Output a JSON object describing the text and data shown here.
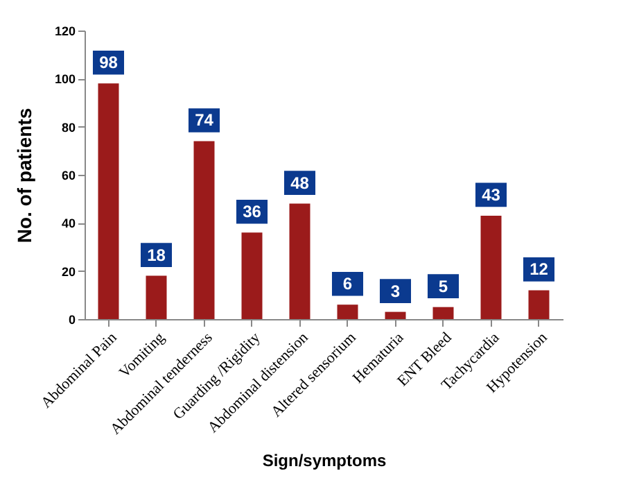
{
  "chart_data": {
    "type": "bar",
    "xlabel": "Sign/symptoms",
    "ylabel": "No. of patients",
    "categories": [
      "Abdominal Pain",
      "Vomiting",
      "Abdominal tenderness",
      "Guarding /Rigidity",
      "Abdominal distension",
      "Altered sensorium",
      "Hematuria",
      "ENT Bleed",
      "Tachycardia",
      "Hypotension"
    ],
    "values": [
      98,
      18,
      74,
      36,
      48,
      6,
      3,
      5,
      43,
      12
    ],
    "color": "#9b1b1b",
    "ylim": [
      0,
      120
    ],
    "yticks": [
      0,
      20,
      40,
      60,
      80,
      100,
      120
    ],
    "grid": false,
    "data_labels": true
  }
}
